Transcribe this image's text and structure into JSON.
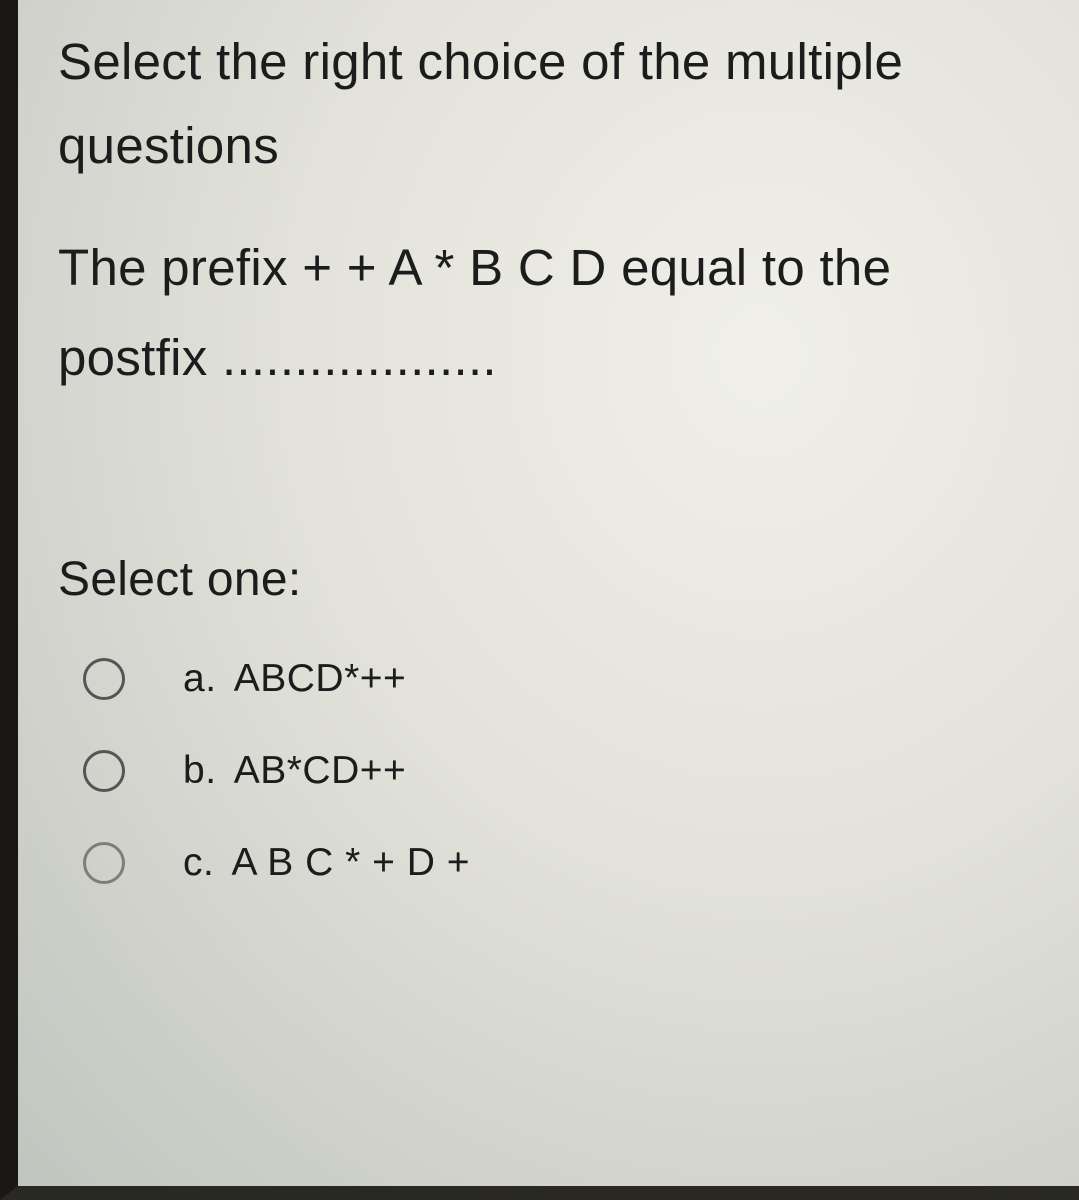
{
  "question": {
    "instruction": "Select the right choice of the multiple questions",
    "stem": "The prefix + + A * B C D equal to the postfix ...................",
    "select_one_label": "Select one:",
    "options": [
      {
        "prefix": "a.",
        "text": "ABCD*++"
      },
      {
        "prefix": "b.",
        "text": "AB*CD++"
      },
      {
        "prefix": "c.",
        "text": "A B C * + D +"
      }
    ]
  },
  "styling": {
    "text_color": "#1c1c1c",
    "background_gradient_start": "#f0efe9",
    "background_gradient_end": "#c0c6bf",
    "border_dark": "#1a1815",
    "radio_border": "#555555",
    "instruction_fontsize": 51,
    "stem_fontsize": 51,
    "option_fontsize": 39
  }
}
